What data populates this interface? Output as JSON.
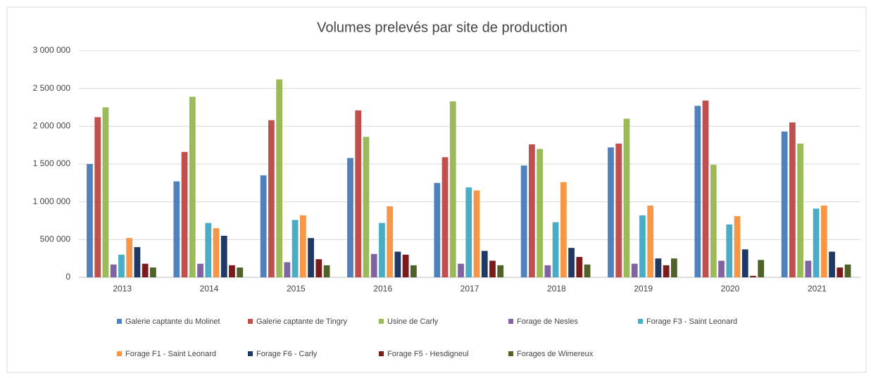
{
  "chart_data": {
    "type": "bar",
    "title": "Volumes prelevés par site de production",
    "categories": [
      "2013",
      "2014",
      "2015",
      "2016",
      "2017",
      "2018",
      "2019",
      "2020",
      "2021"
    ],
    "series": [
      {
        "name": "Galerie captante du Molinet",
        "color": "#4f81bd",
        "values": [
          1500000,
          1270000,
          1350000,
          1580000,
          1250000,
          1480000,
          1720000,
          2270000,
          1930000
        ]
      },
      {
        "name": "Galerie captante de Tingry",
        "color": "#c0504d",
        "values": [
          2120000,
          1660000,
          2080000,
          2210000,
          1590000,
          1760000,
          1770000,
          2340000,
          2050000
        ]
      },
      {
        "name": "Usine de Carly",
        "color": "#9bbb59",
        "values": [
          2250000,
          2390000,
          2620000,
          1860000,
          2330000,
          1700000,
          2100000,
          1490000,
          1770000
        ]
      },
      {
        "name": "Forage de Nesles",
        "color": "#8064a2",
        "values": [
          170000,
          180000,
          200000,
          310000,
          180000,
          160000,
          180000,
          220000,
          220000
        ]
      },
      {
        "name": "Forage F3 - Saint Leonard",
        "color": "#4bacc6",
        "values": [
          300000,
          720000,
          760000,
          720000,
          1190000,
          730000,
          820000,
          700000,
          910000
        ]
      },
      {
        "name": "Forage F1 - Saint Leonard",
        "color": "#f79646",
        "values": [
          520000,
          650000,
          820000,
          940000,
          1150000,
          1260000,
          950000,
          810000,
          950000
        ]
      },
      {
        "name": "Forage F6 - Carly",
        "color": "#1f3864",
        "values": [
          400000,
          550000,
          520000,
          340000,
          350000,
          390000,
          250000,
          370000,
          340000
        ]
      },
      {
        "name": "Forage F5 - Hesdigneul",
        "color": "#7b1c1c",
        "values": [
          180000,
          160000,
          240000,
          300000,
          220000,
          270000,
          160000,
          20000,
          130000
        ]
      },
      {
        "name": "Forages de Wimereux",
        "color": "#4f6228",
        "values": [
          130000,
          130000,
          160000,
          160000,
          160000,
          170000,
          250000,
          230000,
          170000
        ]
      }
    ],
    "ylim": [
      0,
      3000000
    ],
    "yticks": [
      0,
      {
        "value": 500000,
        "label": "500 000"
      },
      {
        "value": 1000000,
        "label": "1 000 000"
      },
      {
        "value": 1500000,
        "label": "1 500 000"
      },
      {
        "value": 2000000,
        "label": "2 000 000"
      },
      {
        "value": 2500000,
        "label": "2 500 000"
      },
      {
        "value": 3000000,
        "label": "3 000 000"
      }
    ],
    "grid": true
  }
}
